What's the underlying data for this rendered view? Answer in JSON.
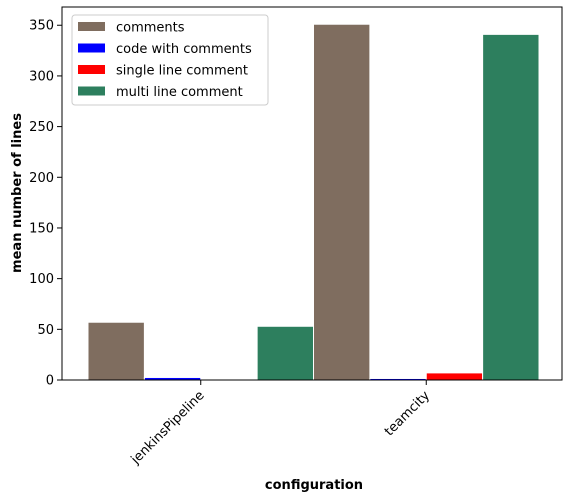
{
  "chart_data": {
    "type": "bar",
    "categories": [
      "jenkinsPipeline",
      "teamcity"
    ],
    "series": [
      {
        "name": "comments",
        "color": "#7f6d5f",
        "values": [
          57,
          351
        ]
      },
      {
        "name": "code with comments",
        "color": "#0000ff",
        "values": [
          2.5,
          1.5
        ]
      },
      {
        "name": "single line comment",
        "color": "#ff0000",
        "values": [
          0,
          7
        ]
      },
      {
        "name": "multi line comment",
        "color": "#2d7f5e",
        "values": [
          53,
          341
        ]
      }
    ],
    "xlabel": "configuration",
    "ylabel": "mean number of lines",
    "ylim": [
      0,
      368
    ],
    "yticks": [
      0,
      50,
      100,
      150,
      200,
      250,
      300,
      350
    ],
    "grid": false,
    "legend": "top-left"
  }
}
